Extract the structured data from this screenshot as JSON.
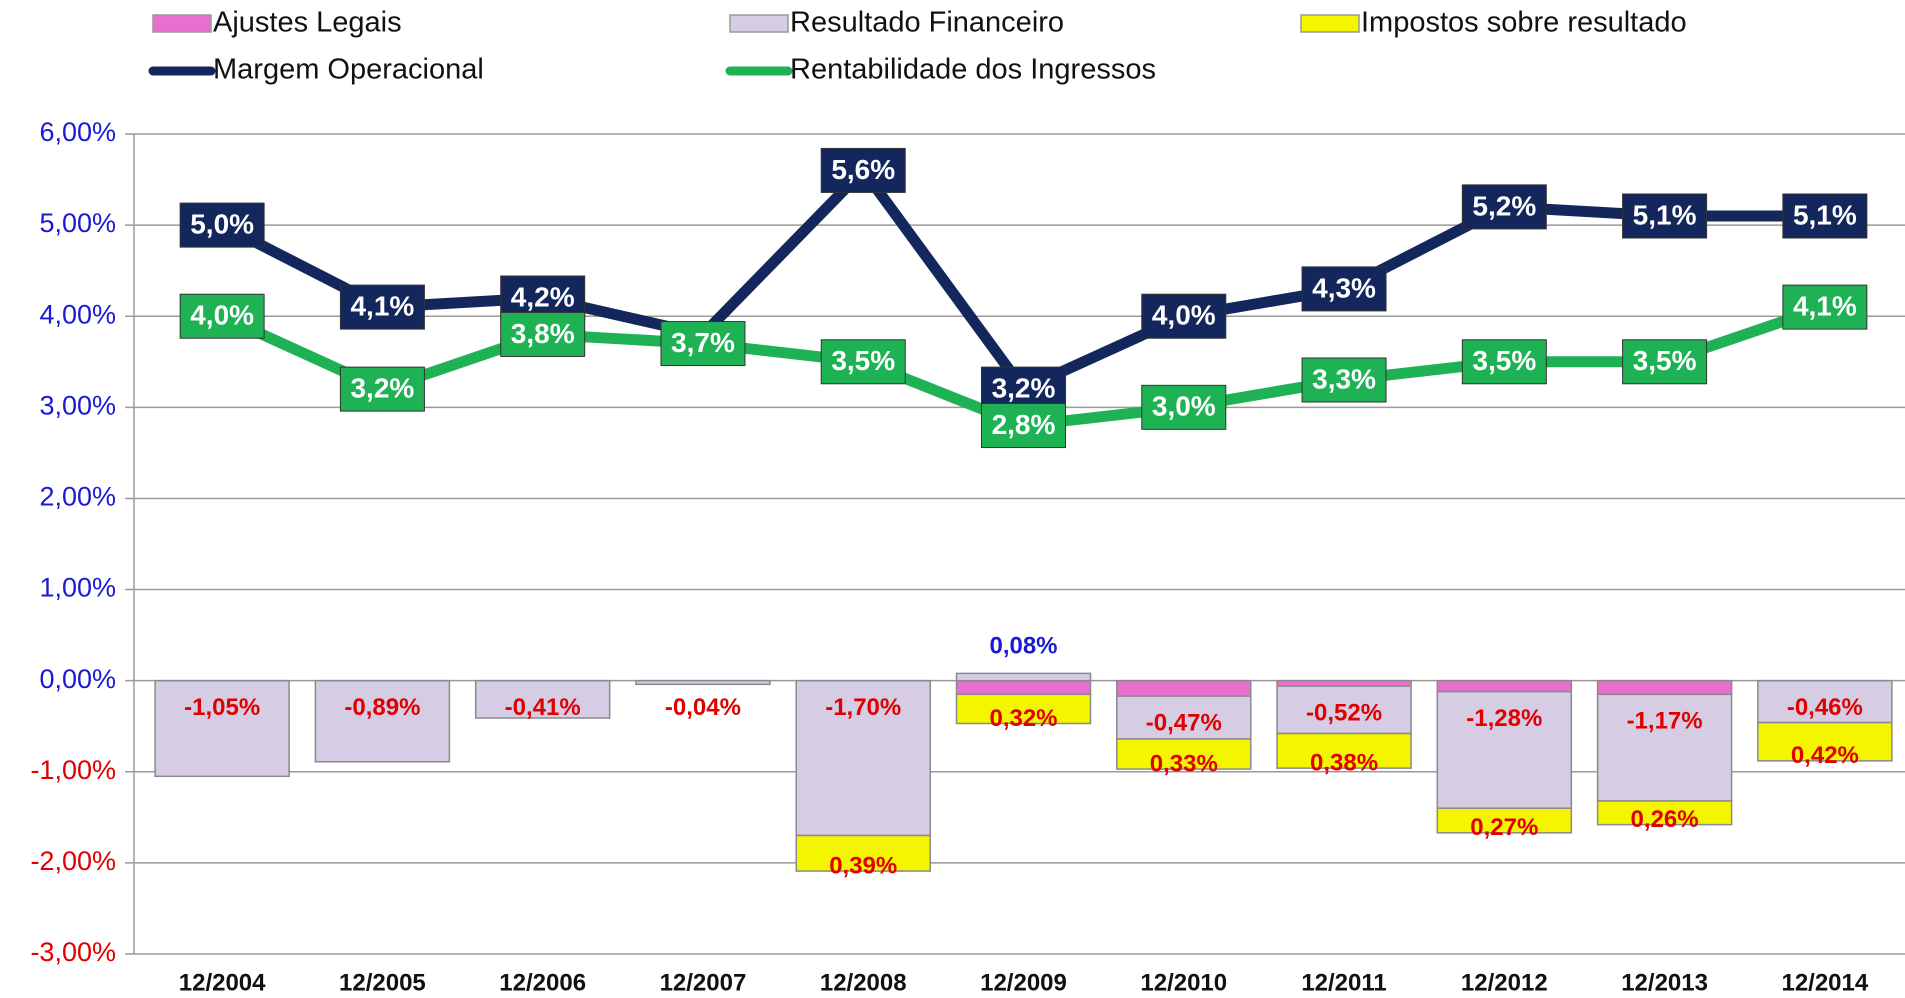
{
  "chart_data": {
    "type": "combo",
    "categories": [
      "12/2004",
      "12/2005",
      "12/2006",
      "12/2007",
      "12/2008",
      "12/2009",
      "12/2010",
      "12/2011",
      "12/2012",
      "12/2013",
      "12/2014"
    ],
    "ylim": [
      -3,
      6
    ],
    "yticks": [
      {
        "value": -3,
        "label": "-3,00%"
      },
      {
        "value": -2,
        "label": "-2,00%"
      },
      {
        "value": -1,
        "label": "-1,00%"
      },
      {
        "value": 0,
        "label": "0,00%"
      },
      {
        "value": 1,
        "label": "1,00%"
      },
      {
        "value": 2,
        "label": "2,00%"
      },
      {
        "value": 3,
        "label": "3,00%"
      },
      {
        "value": 4,
        "label": "4,00%"
      },
      {
        "value": 5,
        "label": "5,00%"
      },
      {
        "value": 6,
        "label": "6,00%"
      }
    ],
    "grid": true,
    "series": [
      {
        "name": "Ajustes Legais",
        "type": "bar",
        "color": "#e86fcf",
        "values": [
          0,
          0,
          0,
          0,
          0,
          -0.15,
          -0.17,
          -0.06,
          -0.12,
          -0.15,
          0
        ]
      },
      {
        "name": "Resultado Financeiro",
        "type": "bar",
        "color": "#d6cce4",
        "values": [
          -1.05,
          -0.89,
          -0.41,
          -0.04,
          -1.7,
          0.08,
          -0.47,
          -0.52,
          -1.28,
          -1.17,
          -0.46
        ],
        "value_labels": [
          "-1,05%",
          "-0,89%",
          "-0,41%",
          "-0,04%",
          "-1,70%",
          "0,08%",
          "-0,47%",
          "-0,52%",
          "-1,28%",
          "-1,17%",
          "-0,46%"
        ]
      },
      {
        "name": "Impostos sobre resultado",
        "type": "bar",
        "color": "#f5f500",
        "values": [
          null,
          null,
          null,
          null,
          -0.39,
          -0.32,
          -0.33,
          -0.38,
          -0.27,
          -0.26,
          -0.42
        ],
        "value_labels": [
          null,
          null,
          null,
          null,
          "0,39%",
          "0,32%",
          "0,33%",
          "0,38%",
          "0,27%",
          "0,26%",
          "0,42%"
        ]
      },
      {
        "name": "Margem Operacional",
        "type": "line",
        "color": "#14275c",
        "values": [
          5.0,
          4.1,
          4.2,
          3.8,
          5.6,
          3.2,
          4.0,
          4.3,
          5.2,
          5.1,
          5.1
        ],
        "value_labels": [
          "5,0%",
          "4,1%",
          "4,2%",
          null,
          "5,6%",
          "3,2%",
          "4,0%",
          "4,3%",
          "5,2%",
          "5,1%",
          "5,1%"
        ]
      },
      {
        "name": "Rentabilidade dos Ingressos",
        "type": "line",
        "color": "#1fb255",
        "values": [
          4.0,
          3.2,
          3.8,
          3.7,
          3.5,
          2.8,
          3.0,
          3.3,
          3.5,
          3.5,
          4.1
        ],
        "value_labels": [
          "4,0%",
          "3,2%",
          "3,8%",
          "3,7%",
          "3,5%",
          "2,8%",
          "3,0%",
          "3,3%",
          "3,5%",
          "3,5%",
          "4,1%"
        ]
      }
    ]
  }
}
